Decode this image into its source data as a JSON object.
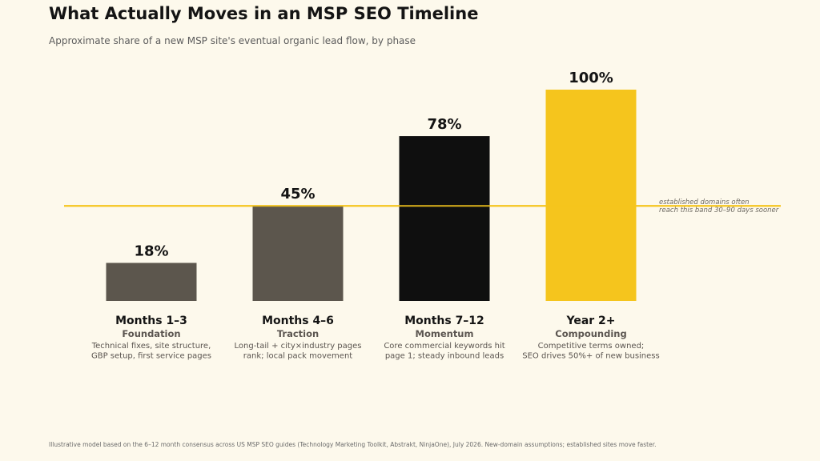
{
  "colors": {
    "background": "#fdf9ec",
    "bar_dark": "#0f0f0f",
    "bar_gray": "#5c564d",
    "bar_yellow": "#f5c51d",
    "reference_line": "#f5c51d"
  },
  "chart_data": {
    "type": "bar",
    "title": "What Actually Moves in an MSP SEO Timeline",
    "subtitle": "Approximate share of a new MSP site's eventual organic lead flow, by phase",
    "value_labels": [
      "18%",
      "45%",
      "78%",
      "100%"
    ],
    "values": [
      18,
      45,
      78,
      100
    ],
    "ylim": [
      0,
      100
    ],
    "categories": [
      "Months 1–3",
      "Months 4–6",
      "Months 7–12",
      "Year 2+"
    ],
    "phase_names": [
      "Foundation",
      "Traction",
      "Momentum",
      "Compounding"
    ],
    "descriptions": [
      [
        "Technical fixes, site structure,",
        "GBP setup, first service pages"
      ],
      [
        "Long-tail + city×industry pages",
        "rank; local pack movement"
      ],
      [
        "Core commercial keywords hit",
        "page 1; steady inbound leads"
      ],
      [
        "Competitive terms owned;",
        "SEO drives 50%+ of new business"
      ]
    ],
    "bar_colors": [
      "#5c564d",
      "#5c564d",
      "#0f0f0f",
      "#f5c51d"
    ],
    "reference_line": {
      "value": 45,
      "annotation": [
        "established domains often",
        "reach this band 30–90 days sooner"
      ]
    },
    "grid": false,
    "legend": "none"
  },
  "footer": "Illustrative model based on the 6–12 month consensus across US MSP SEO guides (Technology Marketing Toolkit, Abstrakt, NinjaOne), July 2026. New-domain assumptions; established sites move faster."
}
